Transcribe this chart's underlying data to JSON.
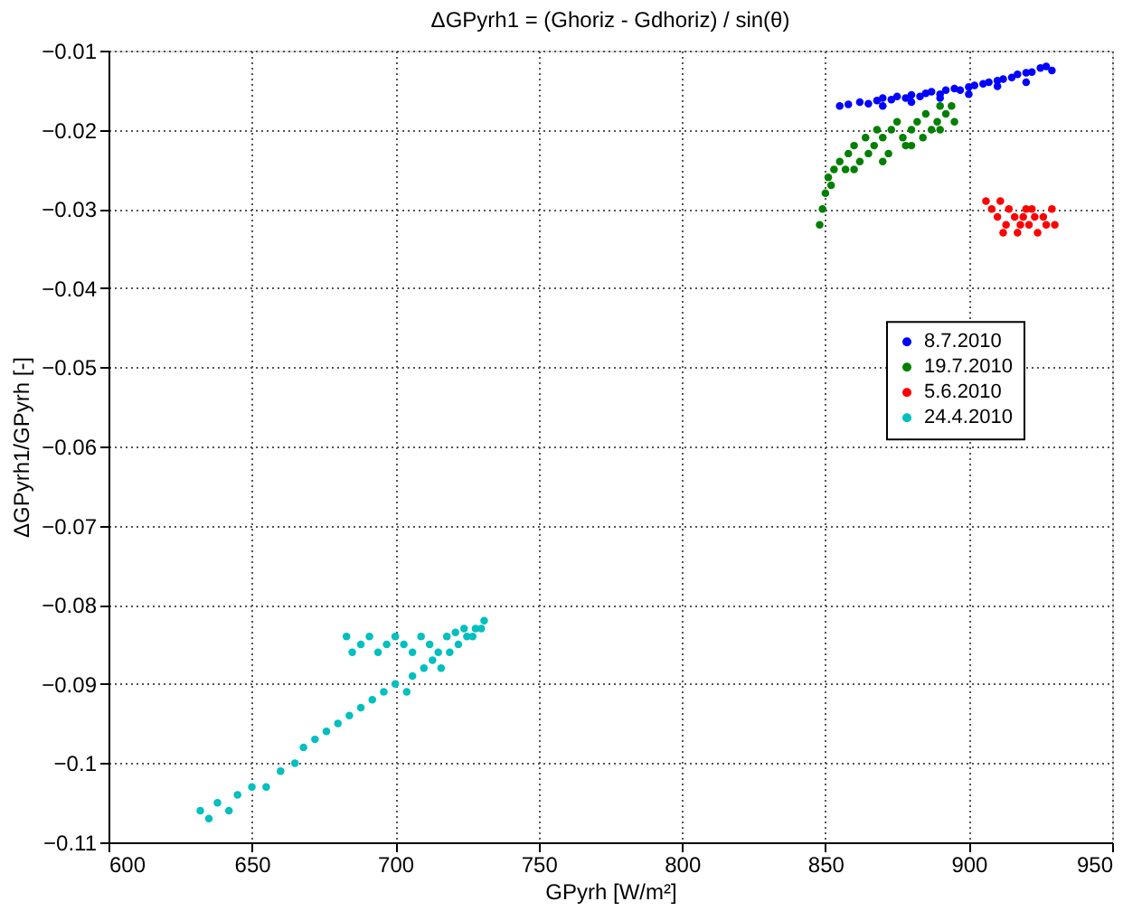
{
  "chart_data": {
    "type": "scatter",
    "title": "ΔGPyrh1 = (Ghoriz - Gdhoriz) / sin(θ)",
    "xlabel": "GPyrh [W/m²]",
    "ylabel": "ΔGPyrh1/GPyrh [-]",
    "xlim": [
      600,
      950
    ],
    "xticks": [
      600,
      650,
      700,
      750,
      800,
      850,
      900,
      950
    ],
    "ylim": [
      -0.11,
      -0.01
    ],
    "yticks": [
      -0.11,
      -0.1,
      -0.09,
      -0.08,
      -0.07,
      -0.06,
      -0.05,
      -0.04,
      -0.03,
      -0.02,
      -0.01
    ],
    "grid": true,
    "legend": "right",
    "marker": "circle",
    "series": [
      {
        "name": "8.7.2010",
        "color": "#0000ff",
        "x": [
          855,
          858,
          862,
          865,
          868,
          870,
          873,
          875,
          878,
          880,
          883,
          885,
          887,
          890,
          892,
          895,
          897,
          900,
          902,
          905,
          907,
          910,
          912,
          915,
          917,
          920,
          922,
          925,
          927,
          929,
          870,
          880,
          890,
          900,
          910,
          920
        ],
        "values": [
          -0.017,
          -0.0168,
          -0.0165,
          -0.0167,
          -0.0163,
          -0.016,
          -0.0162,
          -0.0158,
          -0.016,
          -0.0156,
          -0.0158,
          -0.0154,
          -0.0152,
          -0.0155,
          -0.015,
          -0.0148,
          -0.015,
          -0.0146,
          -0.0144,
          -0.0142,
          -0.014,
          -0.0138,
          -0.0136,
          -0.0134,
          -0.013,
          -0.0128,
          -0.0127,
          -0.0122,
          -0.012,
          -0.0125,
          -0.017,
          -0.0165,
          -0.016,
          -0.0155,
          -0.0145,
          -0.014
        ]
      },
      {
        "name": "19.7.2010",
        "color": "#008000",
        "x": [
          848,
          849,
          850,
          851,
          852,
          853,
          855,
          857,
          858,
          860,
          862,
          864,
          865,
          867,
          868,
          870,
          872,
          873,
          875,
          877,
          878,
          880,
          882,
          884,
          885,
          887,
          889,
          890,
          892,
          894,
          895,
          860,
          870,
          880,
          890
        ],
        "values": [
          -0.032,
          -0.03,
          -0.028,
          -0.026,
          -0.027,
          -0.025,
          -0.024,
          -0.025,
          -0.023,
          -0.022,
          -0.024,
          -0.021,
          -0.023,
          -0.022,
          -0.02,
          -0.021,
          -0.023,
          -0.02,
          -0.019,
          -0.021,
          -0.022,
          -0.02,
          -0.019,
          -0.021,
          -0.018,
          -0.02,
          -0.019,
          -0.017,
          -0.018,
          -0.017,
          -0.019,
          -0.025,
          -0.024,
          -0.022,
          -0.02
        ]
      },
      {
        "name": "5.6.2010",
        "color": "#ff0000",
        "x": [
          906,
          908,
          910,
          911,
          913,
          914,
          916,
          917,
          919,
          920,
          921,
          923,
          924,
          926,
          927,
          929,
          930,
          912,
          918,
          922
        ],
        "values": [
          -0.029,
          -0.03,
          -0.031,
          -0.029,
          -0.032,
          -0.03,
          -0.031,
          -0.033,
          -0.031,
          -0.03,
          -0.032,
          -0.031,
          -0.033,
          -0.031,
          -0.032,
          -0.03,
          -0.032,
          -0.033,
          -0.032,
          -0.03
        ]
      },
      {
        "name": "24.4.2010",
        "color": "#00bfbf",
        "x": [
          632,
          635,
          638,
          642,
          645,
          650,
          655,
          660,
          665,
          668,
          672,
          676,
          680,
          684,
          688,
          692,
          696,
          700,
          704,
          706,
          710,
          713,
          716,
          719,
          722,
          725,
          728,
          731,
          683,
          685,
          688,
          691,
          694,
          697,
          700,
          703,
          706,
          709,
          712,
          715,
          718,
          721,
          724,
          727,
          730
        ],
        "values": [
          -0.106,
          -0.107,
          -0.105,
          -0.106,
          -0.104,
          -0.103,
          -0.103,
          -0.101,
          -0.1,
          -0.098,
          -0.097,
          -0.096,
          -0.095,
          -0.094,
          -0.093,
          -0.092,
          -0.091,
          -0.09,
          -0.091,
          -0.089,
          -0.088,
          -0.087,
          -0.088,
          -0.086,
          -0.085,
          -0.084,
          -0.083,
          -0.082,
          -0.084,
          -0.086,
          -0.085,
          -0.084,
          -0.086,
          -0.085,
          -0.084,
          -0.085,
          -0.086,
          -0.084,
          -0.085,
          -0.086,
          -0.084,
          -0.0835,
          -0.083,
          -0.084,
          -0.083
        ]
      }
    ]
  }
}
